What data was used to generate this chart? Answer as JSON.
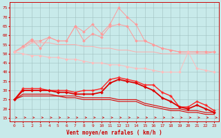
{
  "x": [
    0,
    1,
    2,
    3,
    4,
    5,
    6,
    7,
    8,
    9,
    10,
    11,
    12,
    13,
    14,
    15,
    16,
    17,
    18,
    19,
    20,
    21,
    22,
    23
  ],
  "series": {
    "rafales_top": [
      51,
      54,
      57,
      57,
      59,
      57,
      57,
      65,
      62,
      66,
      61,
      66,
      75,
      70,
      66,
      57,
      55,
      53,
      52,
      51,
      51,
      51,
      51,
      51
    ],
    "rafales_jagged": [
      51,
      54,
      58,
      53,
      59,
      57,
      57,
      65,
      57,
      61,
      59,
      65,
      66,
      65,
      57,
      57,
      55,
      53,
      52,
      51,
      51,
      51,
      51,
      51
    ],
    "rafales_flat1": [
      51,
      53,
      56,
      56,
      56,
      55,
      55,
      55,
      54,
      54,
      53,
      53,
      52,
      52,
      51,
      51,
      51,
      50,
      50,
      50,
      50,
      50,
      50,
      51
    ],
    "rafales_diag": [
      51,
      50,
      49,
      49,
      48,
      48,
      47,
      47,
      46,
      45,
      45,
      44,
      44,
      43,
      42,
      42,
      41,
      40,
      40,
      40,
      51,
      42,
      41,
      40
    ],
    "vent_upper": [
      25,
      31,
      31,
      31,
      30,
      30,
      30,
      29,
      30,
      30,
      31,
      36,
      37,
      36,
      35,
      33,
      33,
      29,
      27,
      21,
      21,
      24,
      22,
      19
    ],
    "vent_mid": [
      25,
      30,
      30,
      30,
      30,
      29,
      29,
      28,
      28,
      28,
      29,
      34,
      36,
      35,
      34,
      32,
      30,
      26,
      24,
      21,
      20,
      22,
      20,
      18
    ],
    "vent_lower1": [
      25,
      28,
      28,
      28,
      28,
      27,
      27,
      27,
      26,
      26,
      26,
      26,
      25,
      25,
      25,
      23,
      22,
      21,
      20,
      20,
      19,
      19,
      18,
      18
    ],
    "vent_lower2": [
      25,
      27,
      27,
      27,
      27,
      27,
      26,
      26,
      25,
      25,
      25,
      25,
      24,
      24,
      24,
      22,
      21,
      20,
      19,
      19,
      18,
      18,
      17,
      17
    ]
  },
  "bg_color": "#c8eaea",
  "grid_color": "#a0c0c0",
  "xlabel": "Vent moyen/en rafales ( km/h )",
  "ylabel_ticks": [
    15,
    20,
    25,
    30,
    35,
    40,
    45,
    50,
    55,
    60,
    65,
    70,
    75
  ],
  "xlim": [
    -0.5,
    23.5
  ],
  "ylim": [
    13,
    78
  ]
}
